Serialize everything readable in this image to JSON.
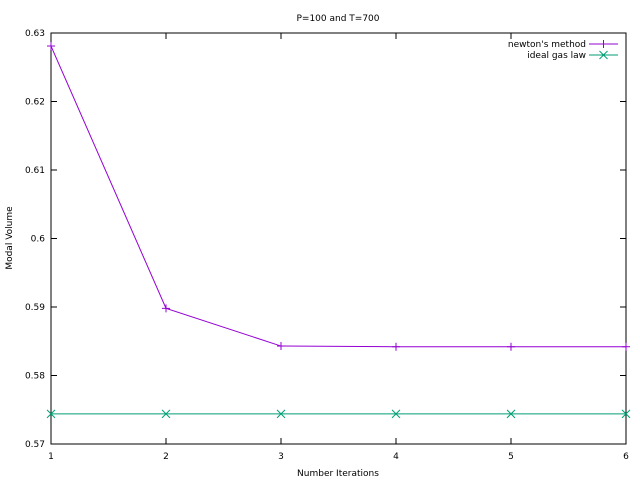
{
  "chart_data": {
    "type": "line",
    "title": "P=100 and T=700",
    "xlabel": "Number Iterations",
    "ylabel": "Modal Volume",
    "xlim": [
      1,
      6
    ],
    "ylim": [
      0.57,
      0.63
    ],
    "xticks": [
      "1",
      "2",
      "3",
      "4",
      "5",
      "6"
    ],
    "yticks": [
      "0.57",
      "0.58",
      "0.59",
      "0.6",
      "0.61",
      "0.62",
      "0.63"
    ],
    "grid": false,
    "legend_position": "top-right",
    "x": [
      1,
      2,
      3,
      4,
      5,
      6
    ],
    "series": [
      {
        "name": "newton's method",
        "values": [
          0.6281,
          0.5898,
          0.5843,
          0.5842,
          0.5842,
          0.5842
        ],
        "color": "#9400d3",
        "marker": "plus"
      },
      {
        "name": "ideal gas law",
        "values": [
          0.5744,
          0.5744,
          0.5744,
          0.5744,
          0.5744,
          0.5744
        ],
        "color": "#009e73",
        "marker": "cross"
      }
    ]
  }
}
